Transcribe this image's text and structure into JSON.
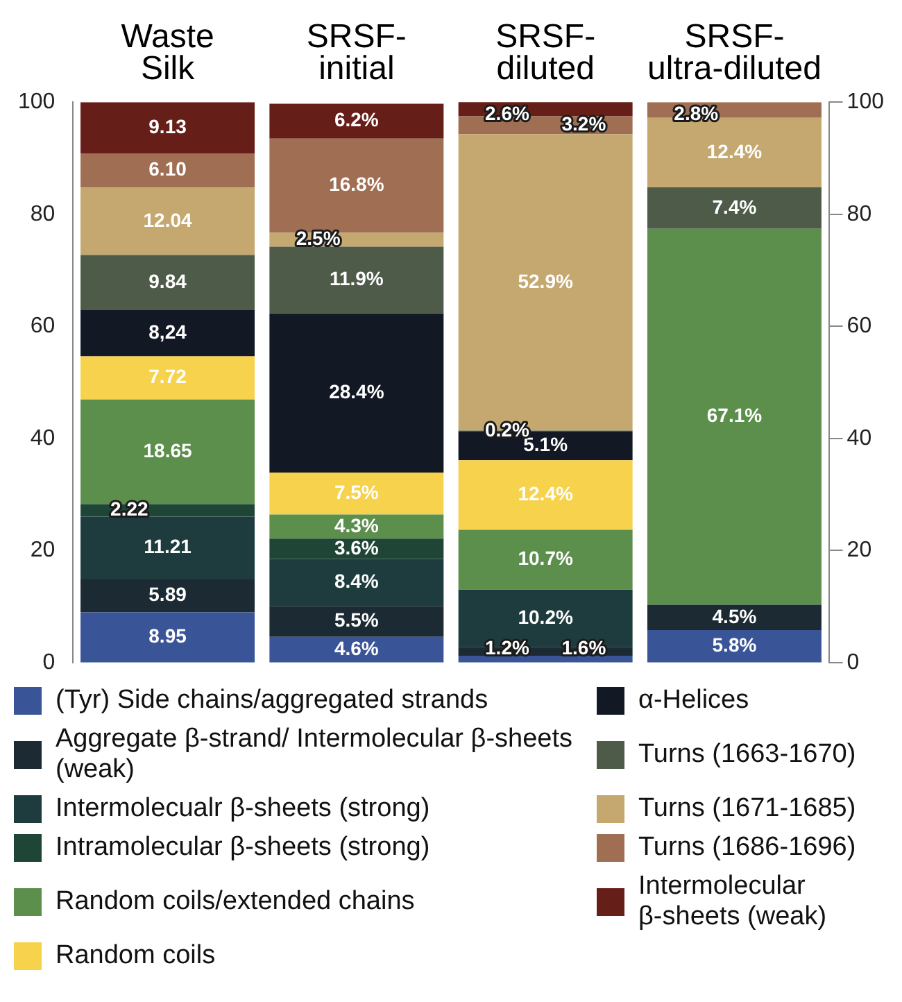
{
  "chart_data": {
    "type": "bar",
    "stacked": true,
    "categories": [
      "Waste Silk",
      "SRSF-initial",
      "SRSF-diluted",
      "SRSF-ultra-diluted"
    ],
    "ylim": [
      0,
      100
    ],
    "yticks": [
      0,
      20,
      40,
      60,
      80,
      100
    ],
    "y2lim": [
      0,
      100
    ],
    "y2ticks": [
      0,
      20,
      40,
      60,
      80,
      100
    ],
    "grid": false,
    "legend": "bottom",
    "series": [
      {
        "name": "(Tyr) Side chains/aggregated strands",
        "color": "#3a5597",
        "values": [
          8.95,
          4.6,
          1.2,
          5.8
        ],
        "value_labels": [
          "8.95",
          "4.6%",
          "1.2%",
          "5.8%"
        ]
      },
      {
        "name": "Aggregate β-strand/ Intermolecular β-sheets (weak)",
        "color": "#1b2a33",
        "values": [
          5.89,
          5.5,
          1.6,
          4.5
        ],
        "value_labels": [
          "5.89",
          "5.5%",
          "1.6%",
          "4.5%"
        ]
      },
      {
        "name": "Intermolecualr β-sheets (strong)",
        "color": "#1e3c3e",
        "values": [
          11.21,
          8.4,
          10.2,
          null
        ],
        "value_labels": [
          "11.21",
          "8.4%",
          "10.2%",
          null
        ]
      },
      {
        "name": "Intramolecular β-sheets (strong)",
        "color": "#1f4536",
        "values": [
          2.22,
          3.6,
          null,
          null
        ],
        "value_labels": [
          "2.22",
          "3.6%",
          null,
          null
        ]
      },
      {
        "name": "Random coils/extended chains",
        "color": "#5c8f4c",
        "values": [
          18.65,
          4.3,
          10.7,
          67.1
        ],
        "value_labels": [
          "18.65",
          "4.3%",
          "10.7%",
          "67.1%"
        ]
      },
      {
        "name": "Random coils",
        "color": "#f7d24c",
        "values": [
          7.72,
          7.5,
          12.4,
          null
        ],
        "value_labels": [
          "7.72",
          "7.5%",
          "12.4%",
          null
        ]
      },
      {
        "name": "α-Helices",
        "color": "#121824",
        "values": [
          8.24,
          28.4,
          5.1,
          null
        ],
        "value_labels": [
          "8,24",
          "28.4%",
          "5.1%",
          null
        ]
      },
      {
        "name": "Turns (1663-1670)",
        "color": "#4f5b49",
        "values": [
          9.84,
          11.9,
          0.2,
          7.4
        ],
        "value_labels": [
          "9.84",
          "11.9%",
          "0.2%",
          "7.4%"
        ]
      },
      {
        "name": "Turns (1671-1685)",
        "color": "#c4a870",
        "values": [
          12.04,
          2.5,
          52.9,
          12.4
        ],
        "value_labels": [
          "12.04",
          "2.5%",
          "52.9%",
          "12.4%"
        ]
      },
      {
        "name": "Turns (1686-1696)",
        "color": "#a06e52",
        "values": [
          6.1,
          16.8,
          3.2,
          2.8
        ],
        "value_labels": [
          "6.10",
          "16.8%",
          "3.2%",
          "2.8%"
        ]
      },
      {
        "name": "Intermolecular β-sheets (weak)",
        "color": "#661e18",
        "values": [
          9.13,
          6.2,
          2.6,
          null
        ],
        "value_labels": [
          "9.13",
          "6.2%",
          "2.6%",
          null
        ]
      }
    ]
  }
}
